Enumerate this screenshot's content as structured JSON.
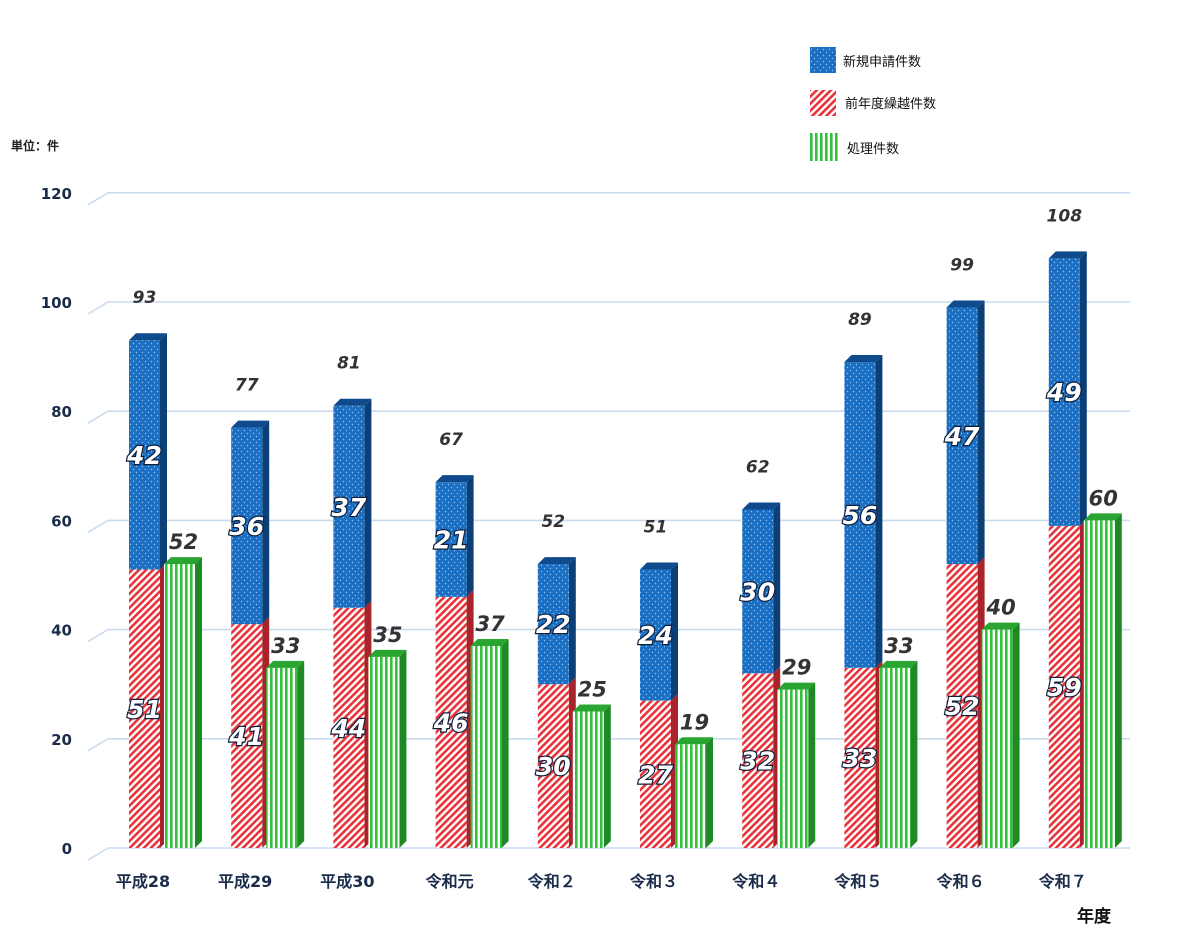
{
  "chart_data": {
    "type": "bar",
    "unit_label": "単位：件",
    "x_unit_label": "年度",
    "categories": [
      "平成28",
      "平成29",
      "平成30",
      "令和元",
      "令和２",
      "令和３",
      "令和４",
      "令和５",
      "令和６",
      "令和７"
    ],
    "series": [
      {
        "name": "新規申請件数",
        "stack": "applications",
        "values": [
          42,
          36,
          37,
          21,
          22,
          24,
          30,
          56,
          47,
          49
        ],
        "color": "#1b6fc2"
      },
      {
        "name": "前年度繰越件数",
        "stack": "applications",
        "values": [
          51,
          41,
          44,
          46,
          30,
          27,
          32,
          33,
          52,
          59
        ],
        "color": "#e8333a"
      },
      {
        "name": "処理件数",
        "stack": "processed",
        "values": [
          52,
          33,
          35,
          37,
          25,
          19,
          29,
          33,
          40,
          60
        ],
        "color": "#33c13a"
      }
    ],
    "totals": [
      93,
      77,
      81,
      67,
      52,
      51,
      62,
      89,
      99,
      108
    ],
    "yticks": [
      0,
      20,
      40,
      60,
      80,
      100,
      120
    ],
    "ylim": [
      0,
      120
    ],
    "grid": true,
    "legend_position": "top-right"
  }
}
